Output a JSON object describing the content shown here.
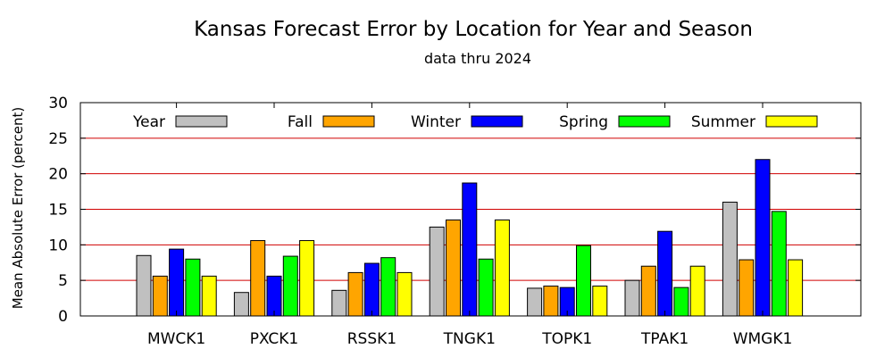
{
  "chart_data": {
    "type": "bar",
    "title": "Kansas Forecast Error by Location for Year and Season",
    "subtitle": "data thru 2024",
    "xlabel": "",
    "ylabel": "Mean Absolute Error (percent)",
    "ylim": [
      0,
      30
    ],
    "yticks": [
      "0",
      "5",
      "10",
      "15",
      "20",
      "25",
      "30"
    ],
    "grid": true,
    "legend_position": "top",
    "categories": [
      "MWCK1",
      "PXCK1",
      "RSSK1",
      "TNGK1",
      "TOPK1",
      "TPAK1",
      "WMGK1"
    ],
    "series": [
      {
        "name": "Year",
        "color": "#c0c0c0",
        "values": [
          8.5,
          3.3,
          3.6,
          12.5,
          3.9,
          5.0,
          16.0
        ]
      },
      {
        "name": "Fall",
        "color": "#ffa500",
        "values": [
          5.6,
          10.6,
          6.1,
          13.5,
          4.2,
          7.0,
          7.9
        ]
      },
      {
        "name": "Winter",
        "color": "#0000ff",
        "values": [
          9.4,
          5.6,
          7.4,
          18.7,
          4.0,
          11.9,
          22.0
        ]
      },
      {
        "name": "Spring",
        "color": "#00ff00",
        "values": [
          8.0,
          8.4,
          8.2,
          8.0,
          9.9,
          4.0,
          14.7
        ]
      },
      {
        "name": "Summer",
        "color": "#ffff00",
        "values": [
          5.6,
          10.6,
          6.1,
          13.5,
          4.2,
          7.0,
          7.9
        ]
      }
    ]
  }
}
